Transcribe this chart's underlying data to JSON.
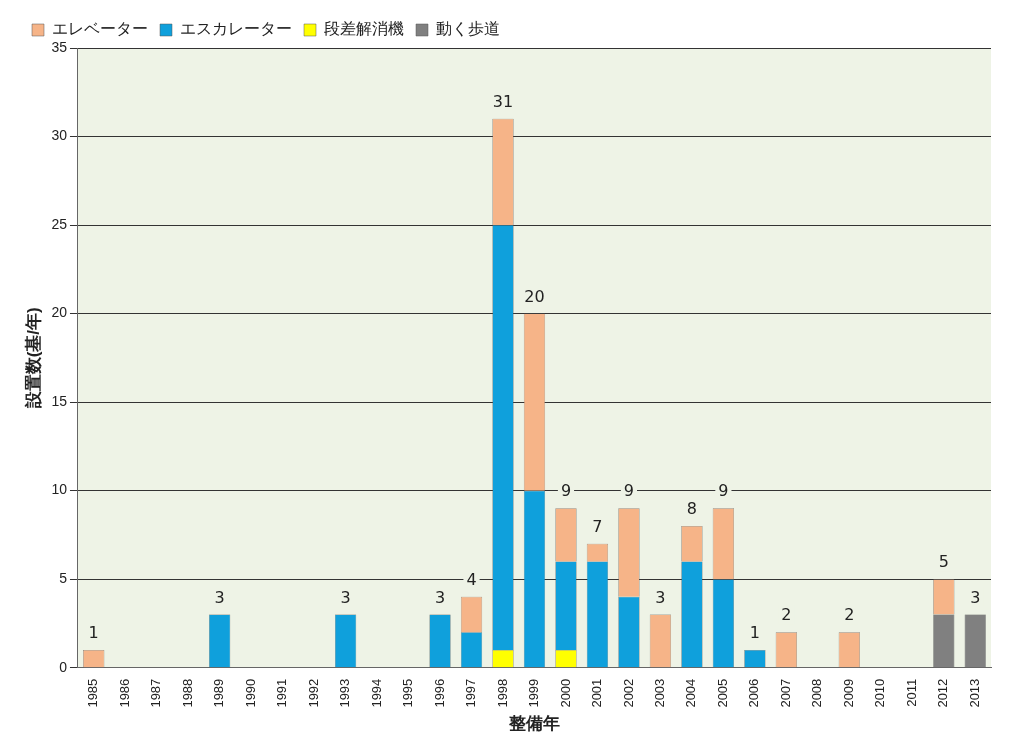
{
  "chart_data": {
    "type": "bar",
    "stacked": true,
    "xlabel": "整備年",
    "ylabel": "設置数(基/年)",
    "categories": [
      "1985",
      "1986",
      "1987",
      "1988",
      "1989",
      "1990",
      "1991",
      "1992",
      "1993",
      "1994",
      "1995",
      "1996",
      "1997",
      "1998",
      "1999",
      "2000",
      "2001",
      "2002",
      "2003",
      "2004",
      "2005",
      "2006",
      "2007",
      "2008",
      "2009",
      "2010",
      "2011",
      "2012",
      "2013"
    ],
    "series": [
      {
        "name": "動く歩道",
        "color": "#808080",
        "values": [
          0,
          0,
          0,
          0,
          0,
          0,
          0,
          0,
          0,
          0,
          0,
          0,
          0,
          0,
          0,
          0,
          0,
          0,
          0,
          0,
          0,
          0,
          0,
          0,
          0,
          0,
          0,
          3,
          3
        ]
      },
      {
        "name": "段差解消機",
        "color": "#ffff00",
        "values": [
          0,
          0,
          0,
          0,
          0,
          0,
          0,
          0,
          0,
          0,
          0,
          0,
          0,
          1,
          0,
          1,
          0,
          0,
          0,
          0,
          0,
          0,
          0,
          0,
          0,
          0,
          0,
          0,
          0
        ]
      },
      {
        "name": "エスカレーター",
        "color": "#0fa0dc",
        "values": [
          0,
          0,
          0,
          0,
          3,
          0,
          0,
          0,
          3,
          0,
          0,
          3,
          2,
          24,
          10,
          5,
          6,
          4,
          0,
          6,
          5,
          1,
          0,
          0,
          0,
          0,
          0,
          0,
          0
        ]
      },
      {
        "name": "エレベーター",
        "color": "#f6b488",
        "values": [
          1,
          0,
          0,
          0,
          0,
          0,
          0,
          0,
          0,
          0,
          0,
          0,
          2,
          6,
          10,
          3,
          1,
          5,
          3,
          2,
          4,
          0,
          2,
          0,
          2,
          0,
          0,
          2,
          0
        ]
      }
    ],
    "totals": [
      "1",
      null,
      null,
      null,
      "3",
      null,
      null,
      null,
      "3",
      null,
      null,
      "3",
      "4",
      "31",
      "20",
      "9",
      "7",
      "9",
      "3",
      "8",
      "9",
      "1",
      "2",
      null,
      "2",
      null,
      null,
      "5",
      "3"
    ],
    "ylim": [
      0,
      35
    ],
    "yticks": [
      0,
      5,
      10,
      15,
      20,
      25,
      30,
      35
    ],
    "grid": "y",
    "legend": "top left"
  }
}
